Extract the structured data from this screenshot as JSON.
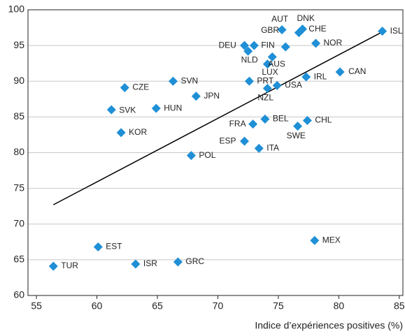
{
  "chart_data": {
    "type": "scatter",
    "x_label": "Indice d’expériences positives (%)",
    "xlim": [
      54.3,
      85.3
    ],
    "ylim": [
      60,
      100
    ],
    "xticks": [
      55,
      60,
      65,
      70,
      75,
      80,
      85
    ],
    "yticks": [
      60,
      65,
      70,
      75,
      80,
      85,
      90,
      95,
      100
    ],
    "grid": true,
    "color": "#1f8fd6",
    "trend_color": "#000000",
    "labels": [
      "TUR",
      "EST",
      "ISR",
      "GRC",
      "MEX",
      "POL",
      "ESP",
      "ITA",
      "FRA",
      "BEL",
      "SWE",
      "CHL",
      "KOR",
      "SVK",
      "HUN",
      "CZE",
      "SVN",
      "JPN",
      "PRT",
      "NZL",
      "USA",
      "IRL",
      "CAN",
      "LUX",
      "AUS",
      "DEU",
      "NLD",
      "FIN",
      "GBR",
      null,
      "CHE",
      "DNK",
      "NOR",
      "ISL"
    ],
    "x": [
      56.4,
      60.1,
      63.2,
      66.7,
      78.0,
      67.8,
      72.2,
      73.4,
      72.9,
      73.9,
      76.6,
      77.4,
      62.0,
      61.2,
      64.9,
      62.3,
      66.3,
      68.2,
      72.6,
      74.1,
      74.9,
      77.3,
      80.1,
      74.1,
      74.5,
      72.2,
      72.5,
      73.0,
      75.3,
      75.6,
      76.7,
      77.0,
      78.1,
      83.6
    ],
    "y": [
      64.1,
      66.8,
      64.4,
      64.7,
      67.7,
      79.6,
      81.6,
      80.6,
      84.0,
      84.7,
      83.7,
      84.5,
      82.8,
      86.0,
      86.2,
      89.1,
      90.0,
      87.9,
      90.0,
      89.0,
      89.4,
      90.6,
      91.3,
      92.4,
      93.4,
      95.0,
      94.2,
      95.0,
      97.2,
      94.8,
      96.8,
      97.3,
      95.3,
      97.0
    ],
    "annotations": [
      "AUT"
    ],
    "trendline": {
      "x": [
        56.4,
        83.6
      ],
      "y": [
        72.7,
        96.9
      ]
    }
  }
}
